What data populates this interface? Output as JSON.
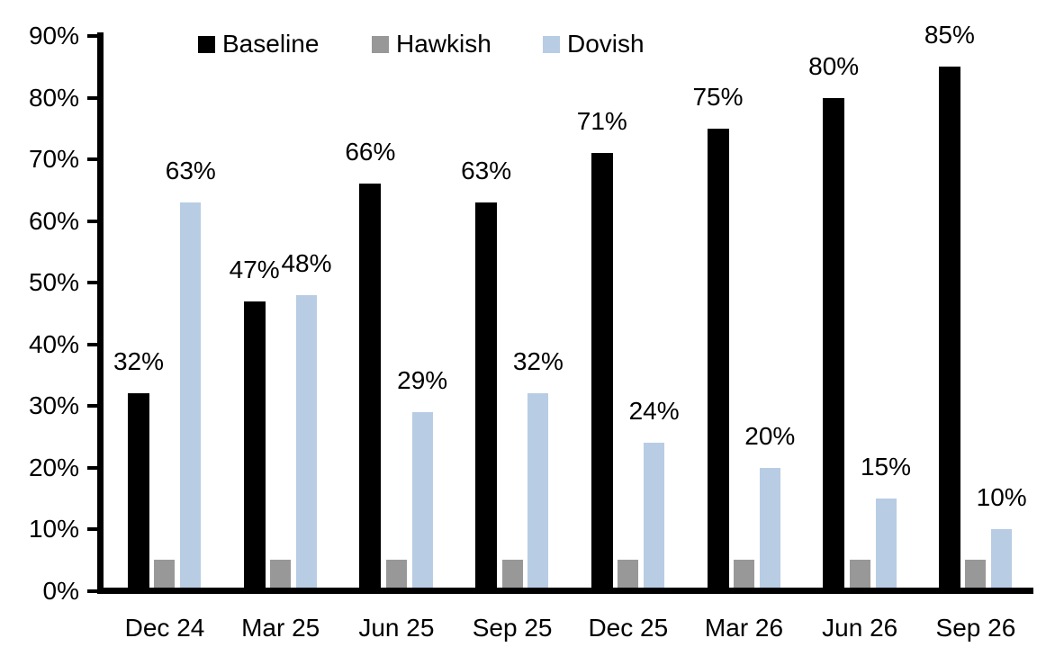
{
  "chart_data": {
    "type": "bar",
    "title": "",
    "categories": [
      "Dec 24",
      "Mar 25",
      "Jun 25",
      "Sep 25",
      "Dec 25",
      "Mar 26",
      "Jun 26",
      "Sep 26"
    ],
    "series": [
      {
        "name": "Baseline",
        "color": "#000000",
        "values": [
          32,
          47,
          66,
          63,
          71,
          75,
          80,
          85
        ],
        "data_labels": [
          "32%",
          "47%",
          "66%",
          "63%",
          "71%",
          "75%",
          "80%",
          "85%"
        ]
      },
      {
        "name": "Hawkish",
        "color": "#989898",
        "values": [
          5,
          5,
          5,
          5,
          5,
          5,
          5,
          5
        ],
        "data_labels": null
      },
      {
        "name": "Dovish",
        "color": "#b8cce4",
        "values": [
          63,
          48,
          29,
          32,
          24,
          20,
          15,
          10
        ],
        "data_labels": [
          "63%",
          "48%",
          "29%",
          "32%",
          "24%",
          "20%",
          "15%",
          "10%"
        ]
      }
    ],
    "y_axis": {
      "ylim": [
        0,
        90
      ],
      "ticks": [
        {
          "value": 0,
          "label": "0%"
        },
        {
          "value": 10,
          "label": "10%"
        },
        {
          "value": 20,
          "label": "20%"
        },
        {
          "value": 30,
          "label": "30%"
        },
        {
          "value": 40,
          "label": "40%"
        },
        {
          "value": 50,
          "label": "50%"
        },
        {
          "value": 60,
          "label": "60%"
        },
        {
          "value": 70,
          "label": "70%"
        },
        {
          "value": 80,
          "label": "80%"
        },
        {
          "value": 90,
          "label": "90%"
        }
      ]
    },
    "legend_position": "top",
    "grid": false,
    "axis_color": "#000000",
    "background_color": "#ffffff"
  }
}
